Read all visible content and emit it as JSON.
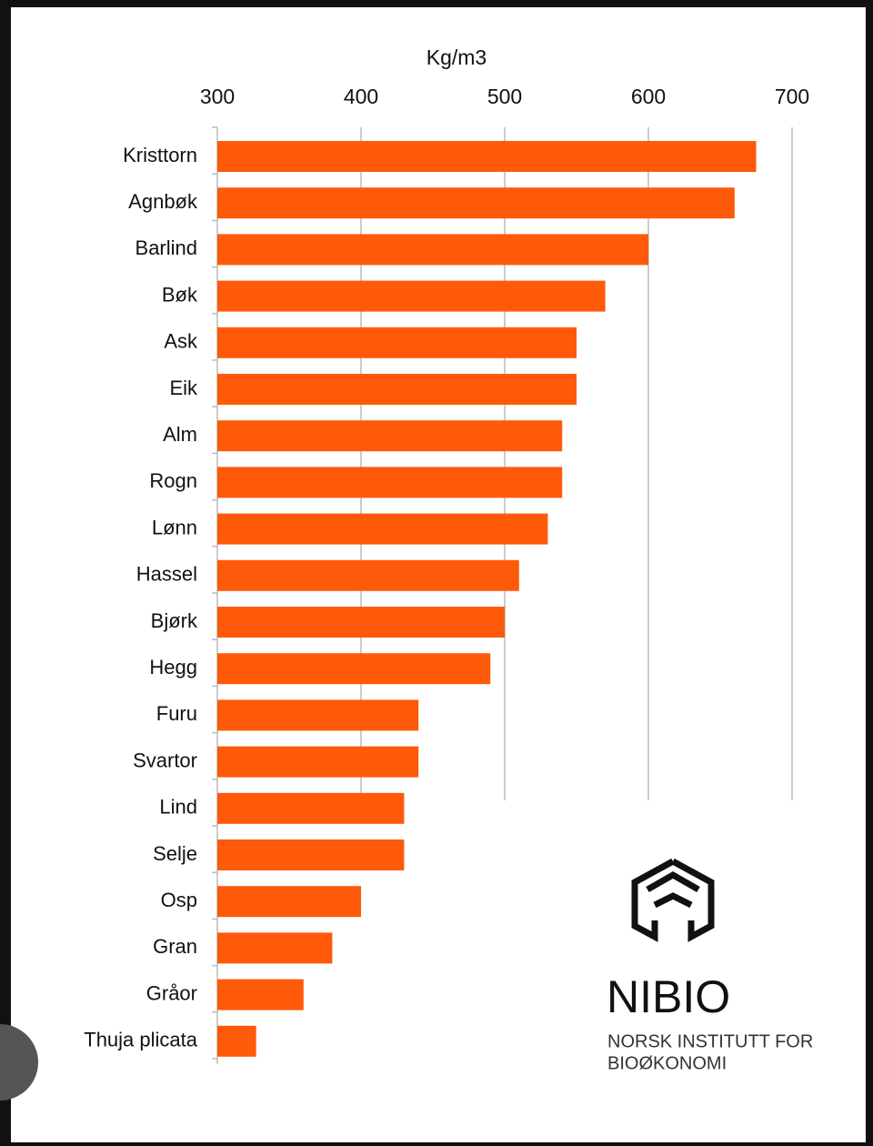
{
  "chart_data": {
    "type": "barh",
    "x_label": "Kg/m3",
    "categories": [
      "Kristtorn",
      "Agnbøk",
      "Barlind",
      "Bøk",
      "Ask",
      "Eik",
      "Alm",
      "Rogn",
      "Lønn",
      "Hassel",
      "Bjørk",
      "Hegg",
      "Furu",
      "Svartor",
      "Lind",
      "Selje",
      "Osp",
      "Gran",
      "Gråor",
      "Thuja plicata"
    ],
    "values": [
      675,
      660,
      600,
      570,
      550,
      550,
      540,
      540,
      530,
      510,
      500,
      490,
      440,
      440,
      430,
      430,
      400,
      380,
      360,
      327
    ],
    "color": "#ff5a0a",
    "xlim": [
      300,
      700
    ],
    "xticks": [
      300,
      400,
      500,
      600,
      700
    ],
    "grid": true
  },
  "logo": {
    "name": "NIBIO",
    "subtitle_line1": "NORSK INSTITUTT FOR",
    "subtitle_line2": "BIOØKONOMI"
  }
}
